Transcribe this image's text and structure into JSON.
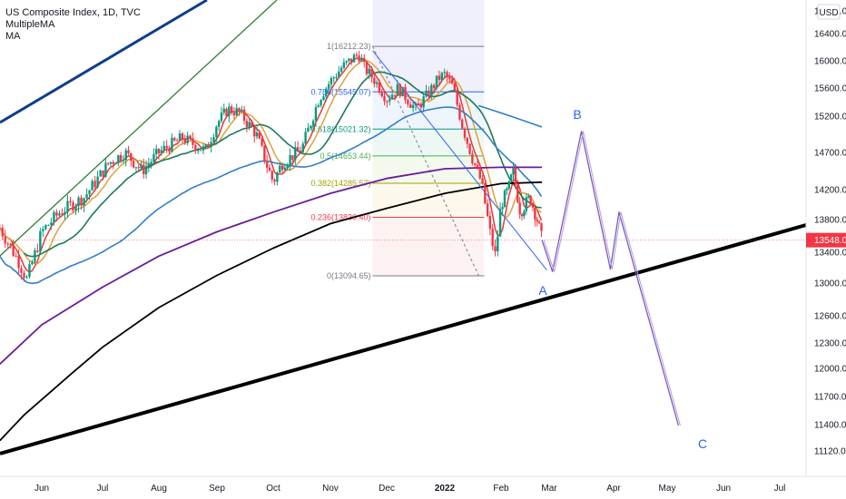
{
  "legend": {
    "symbol": "US Composite Index, 1D, TVC",
    "indicator_1": "MultipleMA",
    "indicator_2": "MA"
  },
  "chart_data": {
    "type": "candlestick",
    "currency": "USD",
    "y_ticks": [
      16800,
      16400,
      16000,
      15600,
      15200,
      14700,
      14200,
      13800,
      13400,
      13000,
      12600,
      12300,
      12000,
      11700,
      11400,
      11120
    ],
    "y_tick_labels": [
      "16800.00",
      "16400.00",
      "16000.00",
      "15600.00",
      "15200.00",
      "14700.00",
      "14200.00",
      "13800.00",
      "13400.00",
      "13000.00",
      "12600.00",
      "12300.00",
      "12000.00",
      "11700.00",
      "11400.00",
      "11120.00"
    ],
    "x_labels": [
      "Jun",
      "Jul",
      "Aug",
      "Sep",
      "Oct",
      "Nov",
      "Dec",
      "2022",
      "Feb",
      "Mar",
      "Apr",
      "May",
      "Jun",
      "Jul"
    ],
    "last_price": 13548.07,
    "last_price_label": "13548.07",
    "fib_levels": [
      {
        "ratio_label": "1",
        "value": 16212.23,
        "label": "1(16212.23)",
        "color": "#787b86"
      },
      {
        "ratio_label": "0.786",
        "value": 15545.07,
        "label": "0.786(15545.07)",
        "color": "#2962ff"
      },
      {
        "ratio_label": "0.618",
        "value": 15021.32,
        "label": "0.618(15021.32)",
        "color": "#089981"
      },
      {
        "ratio_label": "0.5",
        "value": 14653.44,
        "label": "0.5(14653.44)",
        "color": "#4caf50"
      },
      {
        "ratio_label": "0.382",
        "value": 14285.57,
        "label": "0.382(14285.57)",
        "color": "#a2a200"
      },
      {
        "ratio_label": "0.236",
        "value": 13830.4,
        "label": "0.236(13830.40)",
        "color": "#f23645"
      },
      {
        "ratio_label": "0",
        "value": 13094.65,
        "label": "0(13094.65)",
        "color": "#787b86"
      }
    ],
    "wave_labels": [
      {
        "label": "A",
        "month": "Feb",
        "value": 13150
      },
      {
        "label": "B",
        "month": "Mar",
        "value": 14990
      },
      {
        "label": "C",
        "month": "May",
        "value": 11380
      }
    ],
    "colors": {
      "up": "#089981",
      "down": "#f23645",
      "ma_red": "#e53935",
      "ma_orange": "#e0a03a",
      "ma_green": "#1b7a5a",
      "ma_blue": "#2f7fc8",
      "ma_purple": "#6a1b9a",
      "ma_black": "#000000",
      "trend_black": "#000000",
      "trend_navy": "#0d3d8c",
      "trend_green": "#2e7d32",
      "wave": "#7e57c2",
      "label_blue": "#2962ff"
    }
  }
}
